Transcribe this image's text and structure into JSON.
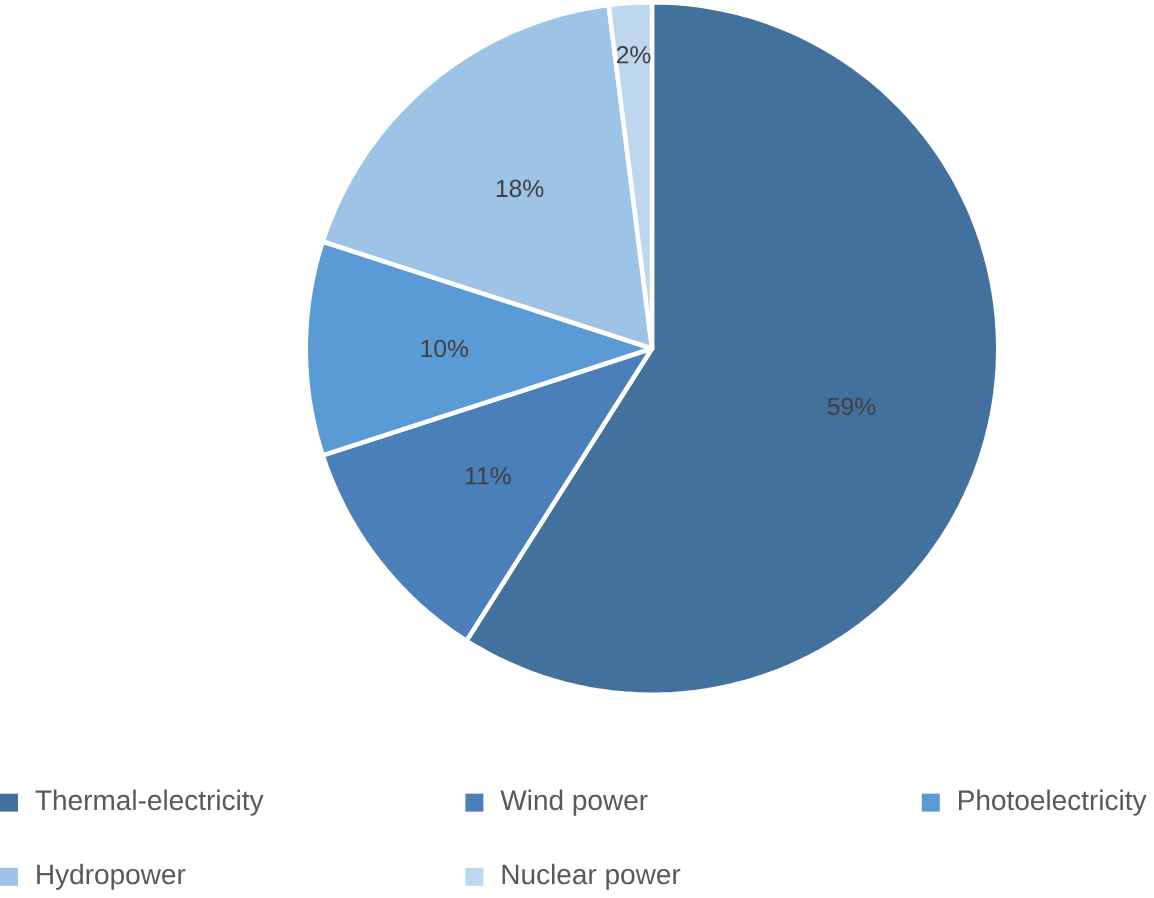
{
  "chart_data": {
    "type": "pie",
    "categories": [
      "Thermal-electricity",
      "Wind power",
      "Photoelectricity",
      "Hydropower",
      "Nuclear power"
    ],
    "values": [
      59,
      11,
      10,
      18,
      2
    ],
    "value_labels": [
      "59%",
      "11%",
      "10%",
      "18%",
      "2%"
    ],
    "colors": [
      "#41719c",
      "#4a7fb9",
      "#5b9bd5",
      "#9dc3e6",
      "#bdd7ee"
    ],
    "legend": "bottom"
  }
}
